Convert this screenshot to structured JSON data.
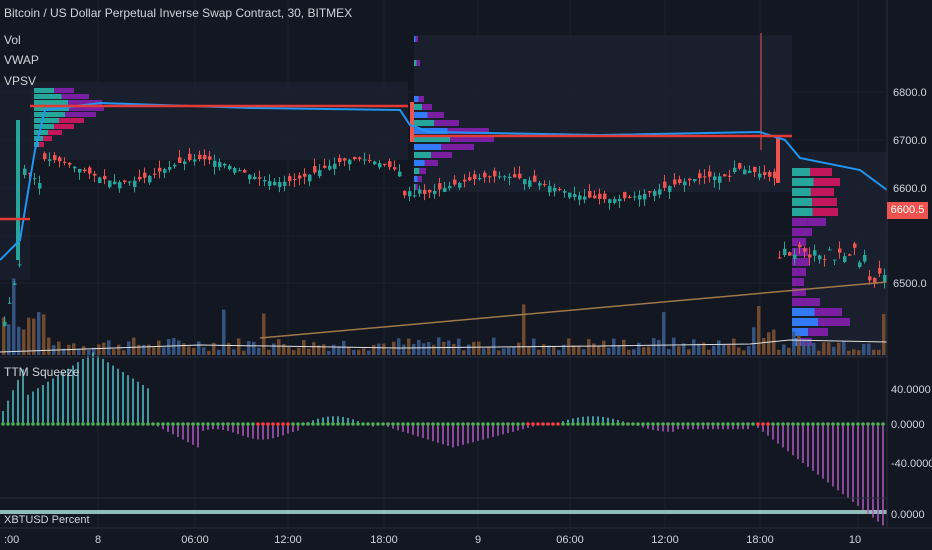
{
  "header": {
    "title": "Bitcoin / US Dollar Perpetual Inverse Swap Contract, 30, BITMEX",
    "indicators": [
      "Vol",
      "VWAP",
      "VPSV"
    ]
  },
  "price_axis": {
    "labels": [
      "6800.0",
      "6700.0",
      "6600.0",
      "6500.0"
    ],
    "current_price": "6600.5",
    "current_price_color": "#ef5350"
  },
  "oscillator": {
    "title": "TTM Squeeze",
    "labels": [
      "40.0000",
      "0.0000",
      "-40.0000"
    ]
  },
  "bottom_pane": {
    "title": "XBTUSD Percent",
    "labels": [
      "0.0000"
    ]
  },
  "time_axis": {
    "labels": [
      ":00",
      "8",
      "06:00",
      "12:00",
      "18:00",
      "9",
      "06:00",
      "12:00",
      "18:00",
      "10"
    ]
  },
  "colors": {
    "background": "#131722",
    "up_candle": "#26a69a",
    "down_candle": "#ef5350",
    "vwap": "#2196f3",
    "profile_up": "#3179f5",
    "profile_down": "#7b1fa2",
    "squeeze_positive": "#4fc3c7",
    "squeeze_negative": "#b05cc0"
  }
}
